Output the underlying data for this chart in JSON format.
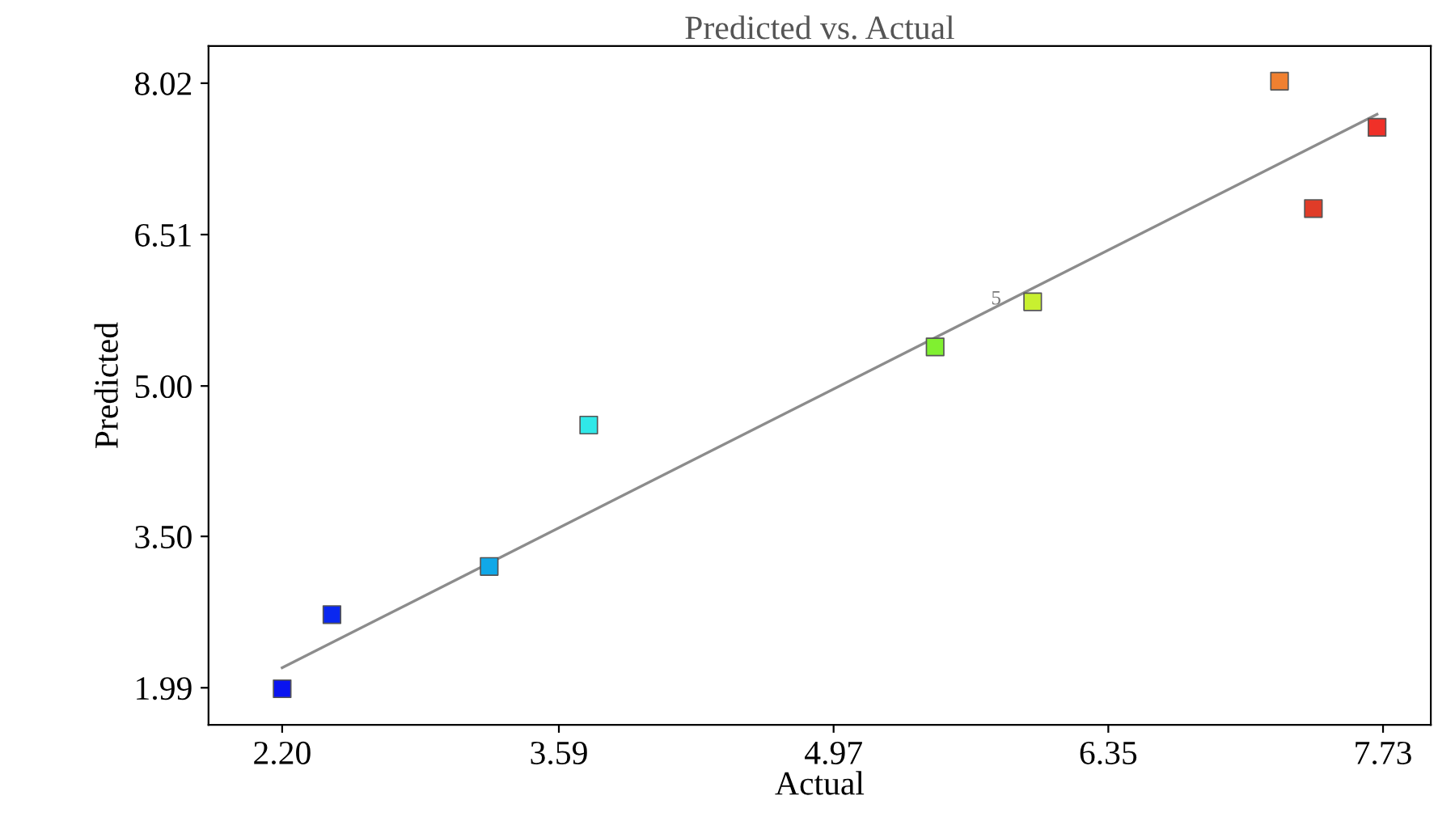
{
  "chart_data": {
    "type": "scatter",
    "title": "Predicted vs. Actual",
    "xlabel": "Actual",
    "ylabel": "Predicted",
    "xlim": [
      1.83,
      7.97
    ],
    "ylim": [
      1.62,
      8.39
    ],
    "xticks": [
      {
        "value": 2.2,
        "label": "2.20"
      },
      3.59,
      4.97,
      6.35,
      7.73
    ],
    "yticks": [
      1.99,
      {
        "value": 3.5,
        "label": "3.50"
      },
      {
        "value": 5,
        "label": "5.00"
      },
      6.51,
      8.02
    ],
    "grid": false,
    "legend": false,
    "marker": "square",
    "series": [
      {
        "x": [
          2.2,
          2.45,
          3.24,
          3.74,
          5.48,
          5.97,
          7.21,
          7.38,
          7.7
        ],
        "values": [
          1.98,
          2.72,
          3.2,
          4.61,
          5.39,
          5.84,
          8.04,
          6.77,
          7.58
        ],
        "colors": [
          "#0a14f0",
          "#0a28f0",
          "#10a8e8",
          "#30e8e8",
          "#80f030",
          "#c8f030",
          "#f08030",
          "#e03c28",
          "#f03028"
        ]
      },
      {
        "type": "line",
        "x": [
          2.2,
          7.7
        ],
        "values": [
          2.19,
          7.71
        ],
        "color": "#8c8c8c",
        "marker": "none"
      }
    ],
    "annotations": [
      {
        "text": "5",
        "x": 5.97,
        "y": 5.84
      }
    ]
  }
}
